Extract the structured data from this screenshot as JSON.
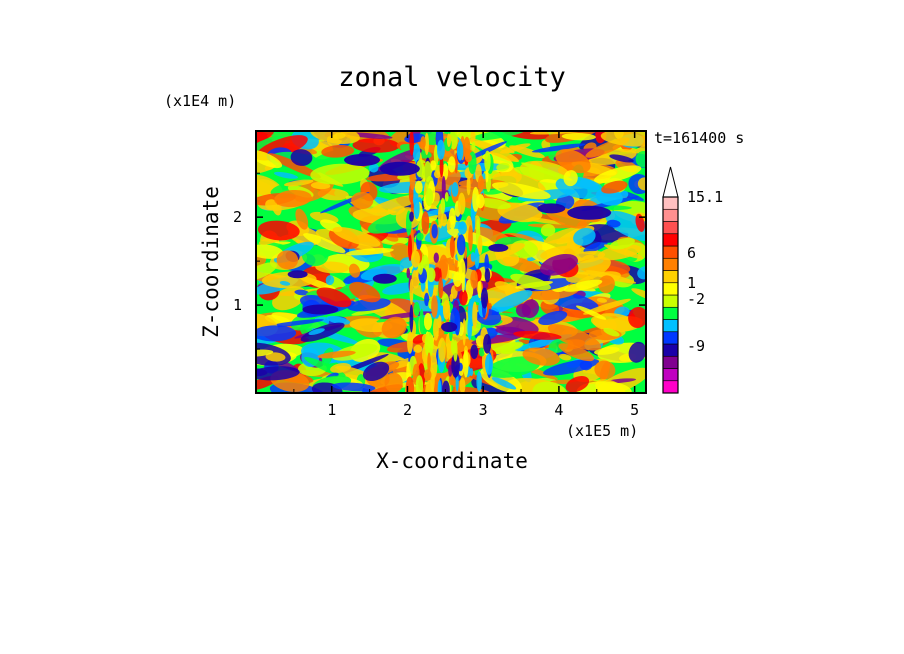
{
  "chart_data": {
    "type": "heatmap",
    "title": "zonal velocity",
    "xlabel": "X-coordinate",
    "ylabel": "Z-coordinate",
    "x_multiplier": "(x1E5 m)",
    "y_multiplier": "(x1E4 m)",
    "time_label": "t=161400 s",
    "xlim": [
      0,
      5.15
    ],
    "ylim": [
      0,
      2.98
    ],
    "x_ticks": [
      1,
      2,
      3,
      4,
      5
    ],
    "x_tick_labels": [
      "1",
      "2",
      "3",
      "4",
      "5"
    ],
    "y_ticks": [
      1,
      2
    ],
    "y_tick_labels": [
      "1",
      "2"
    ],
    "colorbar": {
      "label_values": [
        "15.1",
        "6",
        "1",
        "-2",
        "-9"
      ],
      "colors": [
        "#ff00c8",
        "#c000c0",
        "#800090",
        "#1a00a8",
        "#0038ff",
        "#00c0ff",
        "#00ff40",
        "#c8ff00",
        "#ffff00",
        "#ffd000",
        "#ff8000",
        "#ff5000",
        "#ff0000",
        "#ff5050",
        "#ff9090",
        "#ffc0c0"
      ],
      "extend": "max"
    },
    "colors": {
      "negative_strong": "#1a00a8",
      "neutral": "#00ff40",
      "positive_strong": "#ff0000"
    }
  }
}
